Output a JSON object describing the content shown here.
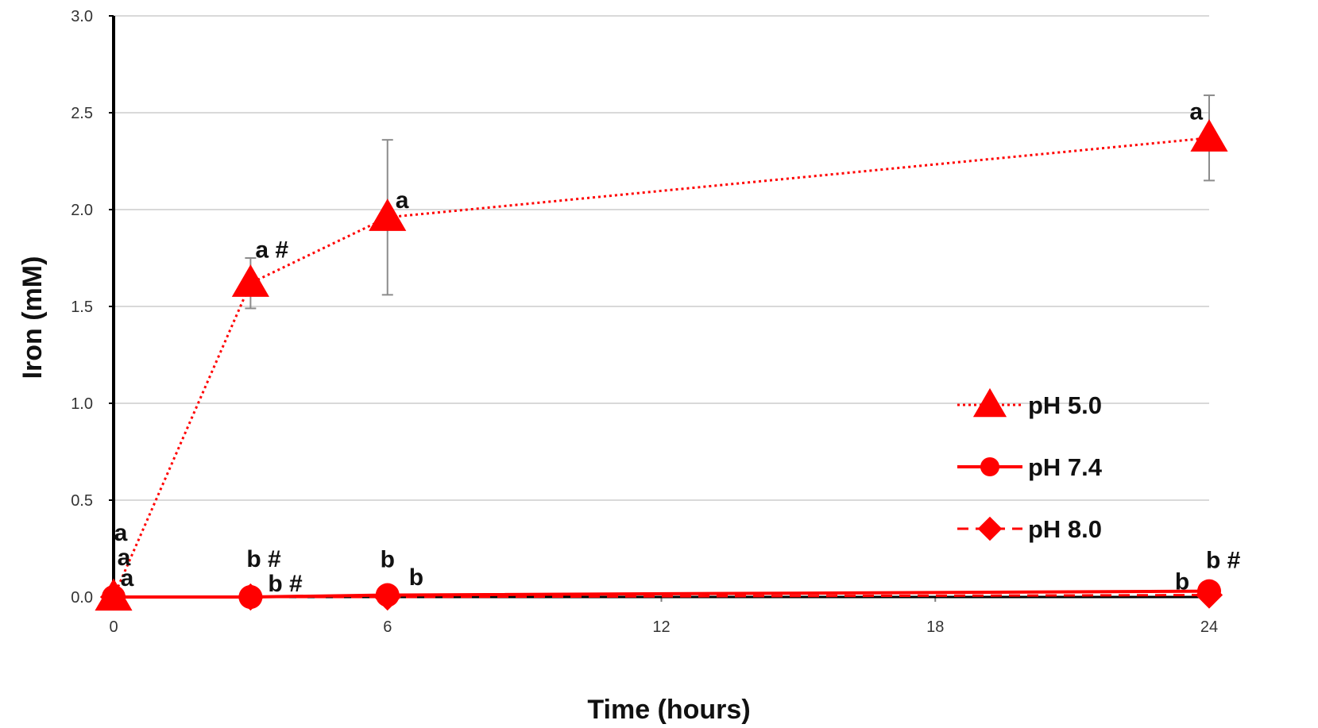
{
  "chart_data": {
    "type": "line",
    "xlabel": "Time (hours)",
    "ylabel": "Iron (mM)",
    "xlim": [
      0,
      24
    ],
    "ylim": [
      0,
      3.0
    ],
    "x_ticks": [
      "0",
      "6",
      "12",
      "18",
      "24"
    ],
    "y_ticks": [
      "0.0",
      "0.5",
      "1.0",
      "1.5",
      "2.0",
      "2.5",
      "3.0"
    ],
    "grid": "horizontal",
    "legend_position": "right",
    "colors": {
      "series": "#ff0000",
      "grid": "#d9d9d9",
      "axis": "#000000",
      "error_bar": "#8c8c8c"
    },
    "series": [
      {
        "name": "pH 5.0",
        "marker": "triangle",
        "line_style": "dotted",
        "x": [
          0,
          3,
          6,
          24
        ],
        "y": [
          0.0,
          1.62,
          1.96,
          2.37
        ],
        "error": [
          0.0,
          0.13,
          0.4,
          0.22
        ]
      },
      {
        "name": "pH 7.4",
        "marker": "circle",
        "line_style": "solid",
        "x": [
          0,
          3,
          6,
          24
        ],
        "y": [
          0.0,
          0.0,
          0.01,
          0.03
        ],
        "error": [
          0,
          0,
          0,
          0
        ]
      },
      {
        "name": "pH 8.0",
        "marker": "diamond",
        "line_style": "dashed",
        "x": [
          0,
          3,
          6,
          24
        ],
        "y": [
          0.0,
          0.0,
          0.0,
          0.01
        ],
        "error": [
          0,
          0,
          0,
          0
        ]
      }
    ],
    "annotations": [
      {
        "text": "a",
        "x": 0,
        "y": 0.0
      },
      {
        "text": "a",
        "x": 0,
        "y": 0.0
      },
      {
        "text": "a",
        "x": 0,
        "y": 0.0
      },
      {
        "text": "a #",
        "x": 3,
        "y": 1.62
      },
      {
        "text": "b #",
        "x": 3,
        "y": 0.0
      },
      {
        "text": "b #",
        "x": 3,
        "y": 0.0
      },
      {
        "text": "a",
        "x": 6,
        "y": 1.96
      },
      {
        "text": "b",
        "x": 6,
        "y": 0.01
      },
      {
        "text": "b",
        "x": 6,
        "y": 0.0
      },
      {
        "text": "a",
        "x": 24,
        "y": 2.37
      },
      {
        "text": "b",
        "x": 24,
        "y": 0.01
      },
      {
        "text": "b #",
        "x": 24,
        "y": 0.03
      }
    ]
  }
}
